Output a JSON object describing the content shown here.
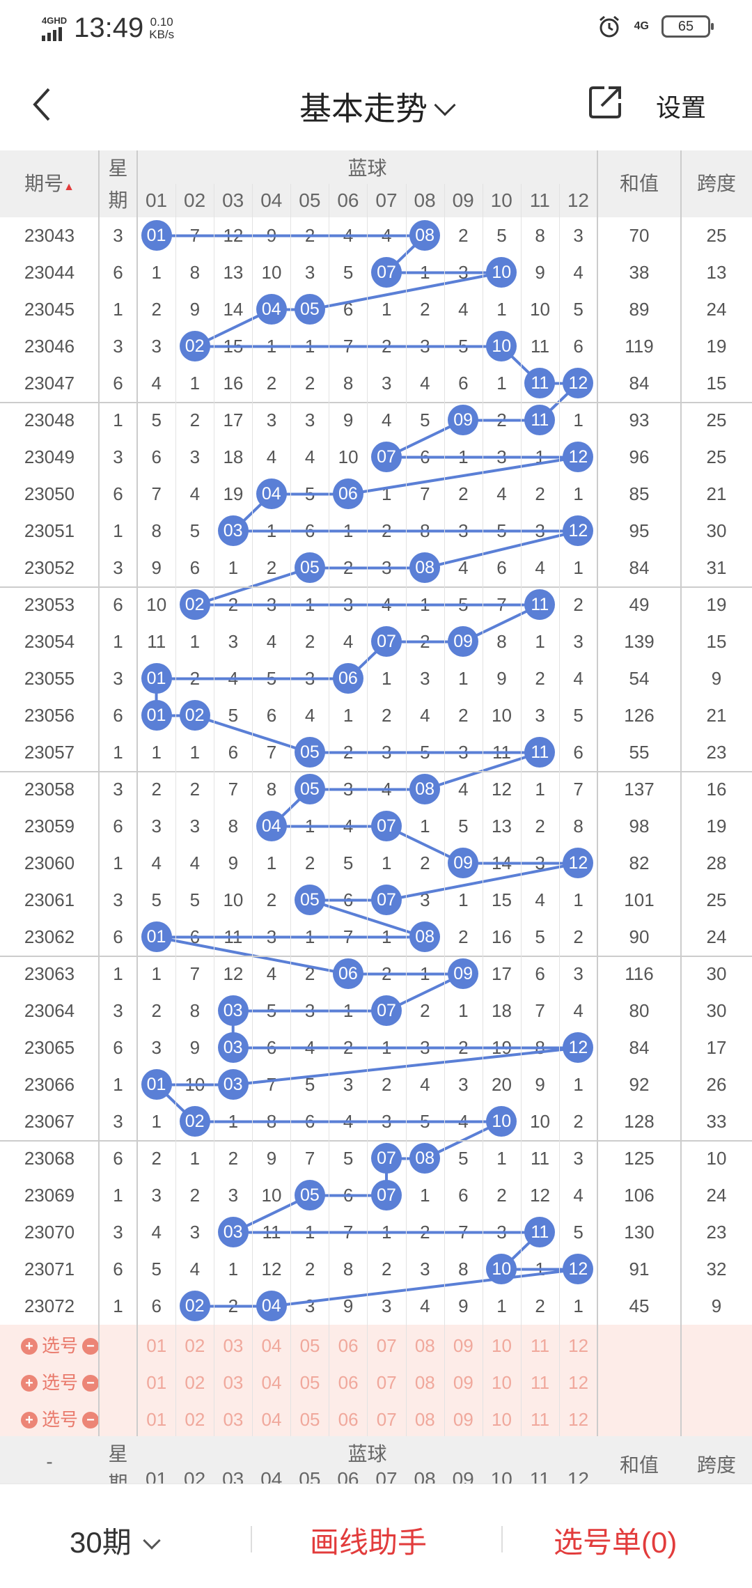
{
  "status": {
    "network": "4GHD",
    "time": "13:49",
    "speed_value": "0.10",
    "speed_unit": "KB/s",
    "net_right": "4G",
    "battery": "65"
  },
  "nav": {
    "title": "基本走势",
    "settings": "设置"
  },
  "header": {
    "issue": "期号",
    "week_top": "星",
    "week_bottom": "期",
    "blue": "蓝球",
    "sum": "和值",
    "span": "跨度",
    "cols": [
      "01",
      "02",
      "03",
      "04",
      "05",
      "06",
      "07",
      "08",
      "09",
      "10",
      "11",
      "12"
    ]
  },
  "rows": [
    {
      "issue": "23043",
      "week": "3",
      "cells": [
        "01",
        "7",
        "12",
        "9",
        "2",
        "4",
        "4",
        "08",
        "2",
        "5",
        "8",
        "3"
      ],
      "sum": "70",
      "span": "25"
    },
    {
      "issue": "23044",
      "week": "6",
      "cells": [
        "1",
        "8",
        "13",
        "10",
        "3",
        "5",
        "07",
        "1",
        "3",
        "10",
        "9",
        "4"
      ],
      "sum": "38",
      "span": "13"
    },
    {
      "issue": "23045",
      "week": "1",
      "cells": [
        "2",
        "9",
        "14",
        "04",
        "05",
        "6",
        "1",
        "2",
        "4",
        "1",
        "10",
        "5"
      ],
      "sum": "89",
      "span": "24"
    },
    {
      "issue": "23046",
      "week": "3",
      "cells": [
        "3",
        "02",
        "15",
        "1",
        "1",
        "7",
        "2",
        "3",
        "5",
        "10",
        "11",
        "6"
      ],
      "sum": "119",
      "span": "19"
    },
    {
      "issue": "23047",
      "week": "6",
      "cells": [
        "4",
        "1",
        "16",
        "2",
        "2",
        "8",
        "3",
        "4",
        "6",
        "1",
        "11",
        "12"
      ],
      "sum": "84",
      "span": "15"
    },
    {
      "issue": "23048",
      "week": "1",
      "cells": [
        "5",
        "2",
        "17",
        "3",
        "3",
        "9",
        "4",
        "5",
        "09",
        "2",
        "11",
        "1"
      ],
      "sum": "93",
      "span": "25"
    },
    {
      "issue": "23049",
      "week": "3",
      "cells": [
        "6",
        "3",
        "18",
        "4",
        "4",
        "10",
        "07",
        "6",
        "1",
        "3",
        "1",
        "12"
      ],
      "sum": "96",
      "span": "25"
    },
    {
      "issue": "23050",
      "week": "6",
      "cells": [
        "7",
        "4",
        "19",
        "04",
        "5",
        "06",
        "1",
        "7",
        "2",
        "4",
        "2",
        "1"
      ],
      "sum": "85",
      "span": "21"
    },
    {
      "issue": "23051",
      "week": "1",
      "cells": [
        "8",
        "5",
        "03",
        "1",
        "6",
        "1",
        "2",
        "8",
        "3",
        "5",
        "3",
        "12"
      ],
      "sum": "95",
      "span": "30"
    },
    {
      "issue": "23052",
      "week": "3",
      "cells": [
        "9",
        "6",
        "1",
        "2",
        "05",
        "2",
        "3",
        "08",
        "4",
        "6",
        "4",
        "1"
      ],
      "sum": "84",
      "span": "31"
    },
    {
      "issue": "23053",
      "week": "6",
      "cells": [
        "10",
        "02",
        "2",
        "3",
        "1",
        "3",
        "4",
        "1",
        "5",
        "7",
        "11",
        "2"
      ],
      "sum": "49",
      "span": "19"
    },
    {
      "issue": "23054",
      "week": "1",
      "cells": [
        "11",
        "1",
        "3",
        "4",
        "2",
        "4",
        "07",
        "2",
        "09",
        "8",
        "1",
        "3"
      ],
      "sum": "139",
      "span": "15"
    },
    {
      "issue": "23055",
      "week": "3",
      "cells": [
        "01",
        "2",
        "4",
        "5",
        "3",
        "06",
        "1",
        "3",
        "1",
        "9",
        "2",
        "4"
      ],
      "sum": "54",
      "span": "9"
    },
    {
      "issue": "23056",
      "week": "6",
      "cells": [
        "01",
        "02",
        "5",
        "6",
        "4",
        "1",
        "2",
        "4",
        "2",
        "10",
        "3",
        "5"
      ],
      "sum": "126",
      "span": "21"
    },
    {
      "issue": "23057",
      "week": "1",
      "cells": [
        "1",
        "1",
        "6",
        "7",
        "05",
        "2",
        "3",
        "5",
        "3",
        "11",
        "11",
        "6"
      ],
      "sum": "55",
      "span": "23"
    },
    {
      "issue": "23058",
      "week": "3",
      "cells": [
        "2",
        "2",
        "7",
        "8",
        "05",
        "3",
        "4",
        "08",
        "4",
        "12",
        "1",
        "7"
      ],
      "sum": "137",
      "span": "16"
    },
    {
      "issue": "23059",
      "week": "6",
      "cells": [
        "3",
        "3",
        "8",
        "04",
        "1",
        "4",
        "07",
        "1",
        "5",
        "13",
        "2",
        "8"
      ],
      "sum": "98",
      "span": "19"
    },
    {
      "issue": "23060",
      "week": "1",
      "cells": [
        "4",
        "4",
        "9",
        "1",
        "2",
        "5",
        "1",
        "2",
        "09",
        "14",
        "3",
        "12"
      ],
      "sum": "82",
      "span": "28"
    },
    {
      "issue": "23061",
      "week": "3",
      "cells": [
        "5",
        "5",
        "10",
        "2",
        "05",
        "6",
        "07",
        "3",
        "1",
        "15",
        "4",
        "1"
      ],
      "sum": "101",
      "span": "25"
    },
    {
      "issue": "23062",
      "week": "6",
      "cells": [
        "01",
        "6",
        "11",
        "3",
        "1",
        "7",
        "1",
        "08",
        "2",
        "16",
        "5",
        "2"
      ],
      "sum": "90",
      "span": "24"
    },
    {
      "issue": "23063",
      "week": "1",
      "cells": [
        "1",
        "7",
        "12",
        "4",
        "2",
        "06",
        "2",
        "1",
        "09",
        "17",
        "6",
        "3"
      ],
      "sum": "116",
      "span": "30"
    },
    {
      "issue": "23064",
      "week": "3",
      "cells": [
        "2",
        "8",
        "03",
        "5",
        "3",
        "1",
        "07",
        "2",
        "1",
        "18",
        "7",
        "4"
      ],
      "sum": "80",
      "span": "30"
    },
    {
      "issue": "23065",
      "week": "6",
      "cells": [
        "3",
        "9",
        "03",
        "6",
        "4",
        "2",
        "1",
        "3",
        "2",
        "19",
        "8",
        "12"
      ],
      "sum": "84",
      "span": "17"
    },
    {
      "issue": "23066",
      "week": "1",
      "cells": [
        "01",
        "10",
        "03",
        "7",
        "5",
        "3",
        "2",
        "4",
        "3",
        "20",
        "9",
        "1"
      ],
      "sum": "92",
      "span": "26"
    },
    {
      "issue": "23067",
      "week": "3",
      "cells": [
        "1",
        "02",
        "1",
        "8",
        "6",
        "4",
        "3",
        "5",
        "4",
        "10",
        "10",
        "2"
      ],
      "sum": "128",
      "span": "33"
    },
    {
      "issue": "23068",
      "week": "6",
      "cells": [
        "2",
        "1",
        "2",
        "9",
        "7",
        "5",
        "07",
        "08",
        "5",
        "1",
        "11",
        "3"
      ],
      "sum": "125",
      "span": "10"
    },
    {
      "issue": "23069",
      "week": "1",
      "cells": [
        "3",
        "2",
        "3",
        "10",
        "05",
        "6",
        "07",
        "1",
        "6",
        "2",
        "12",
        "4"
      ],
      "sum": "106",
      "span": "24"
    },
    {
      "issue": "23070",
      "week": "3",
      "cells": [
        "4",
        "3",
        "03",
        "11",
        "1",
        "7",
        "1",
        "2",
        "7",
        "3",
        "11",
        "5"
      ],
      "sum": "130",
      "span": "23"
    },
    {
      "issue": "23071",
      "week": "6",
      "cells": [
        "5",
        "4",
        "1",
        "12",
        "2",
        "8",
        "2",
        "3",
        "8",
        "10",
        "1",
        "12"
      ],
      "sum": "91",
      "span": "32"
    },
    {
      "issue": "23072",
      "week": "1",
      "cells": [
        "6",
        "02",
        "2",
        "04",
        "3",
        "9",
        "3",
        "4",
        "9",
        "1",
        "2",
        "1"
      ],
      "sum": "45",
      "span": "9"
    }
  ],
  "balls": [
    [
      1,
      8
    ],
    [
      7,
      10
    ],
    [
      4,
      5
    ],
    [
      2,
      10
    ],
    [
      11,
      12
    ],
    [
      9,
      11
    ],
    [
      7,
      12
    ],
    [
      4,
      6
    ],
    [
      3,
      12
    ],
    [
      5,
      8
    ],
    [
      2,
      11
    ],
    [
      7,
      9
    ],
    [
      1,
      6
    ],
    [
      1,
      2
    ],
    [
      5,
      11
    ],
    [
      5,
      8
    ],
    [
      4,
      7
    ],
    [
      9,
      12
    ],
    [
      5,
      7
    ],
    [
      1,
      8
    ],
    [
      6,
      9
    ],
    [
      3,
      7
    ],
    [
      3,
      12
    ],
    [
      1,
      3
    ],
    [
      2,
      10
    ],
    [
      7,
      8
    ],
    [
      5,
      7
    ],
    [
      3,
      11
    ],
    [
      10,
      12
    ],
    [
      2,
      4
    ]
  ],
  "select": {
    "label": "选号",
    "plus": "+",
    "minus": "−",
    "nums": [
      "01",
      "02",
      "03",
      "04",
      "05",
      "06",
      "07",
      "08",
      "09",
      "10",
      "11",
      "12"
    ]
  },
  "footer_header": {
    "dash": "-",
    "week_top": "星",
    "week_bottom": "期",
    "blue": "蓝球",
    "sum": "和值",
    "span": "跨度"
  },
  "bottom": {
    "period": "30期",
    "draw": "画线助手",
    "list": "选号单(0)"
  },
  "colors": {
    "ball": "#5a7fd6",
    "line": "#5a7fd6",
    "accent": "#e23c3c",
    "select_bg": "#fdece8"
  }
}
